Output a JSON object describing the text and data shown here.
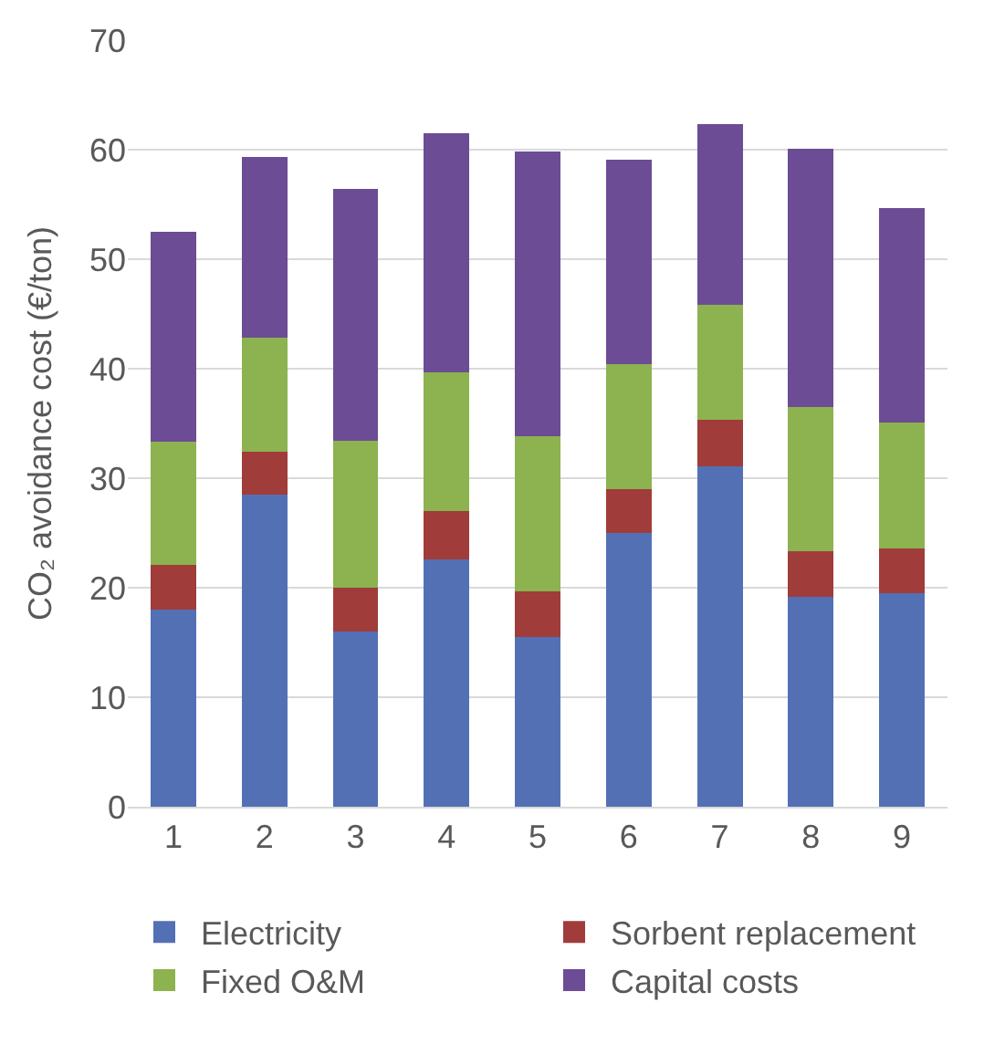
{
  "chart_data": {
    "type": "bar",
    "stacked": true,
    "ylabel": "CO₂ avoidance cost (€/ton)",
    "categories": [
      "1",
      "2",
      "3",
      "4",
      "5",
      "6",
      "7",
      "8",
      "9"
    ],
    "series": [
      {
        "name": "Electricity",
        "color": "#5470b5",
        "values": [
          18.0,
          28.5,
          16.0,
          22.6,
          15.5,
          25.0,
          31.1,
          19.2,
          19.5
        ]
      },
      {
        "name": "Sorbent replacement",
        "color": "#a03c3a",
        "values": [
          4.1,
          3.9,
          4.0,
          4.4,
          4.2,
          4.0,
          4.2,
          4.1,
          4.1
        ]
      },
      {
        "name": "Fixed O&M",
        "color": "#8db250",
        "values": [
          11.2,
          10.4,
          13.4,
          12.7,
          14.1,
          11.4,
          10.5,
          13.2,
          11.5
        ]
      },
      {
        "name": "Capital costs",
        "color": "#6c4c94",
        "values": [
          19.2,
          16.5,
          23.0,
          21.8,
          26.0,
          18.7,
          16.5,
          23.6,
          19.6
        ]
      }
    ],
    "ylim": [
      0,
      70
    ],
    "yticks": [
      0,
      10,
      20,
      30,
      40,
      50,
      60,
      70
    ],
    "grid": "y",
    "legend": "bottom"
  }
}
